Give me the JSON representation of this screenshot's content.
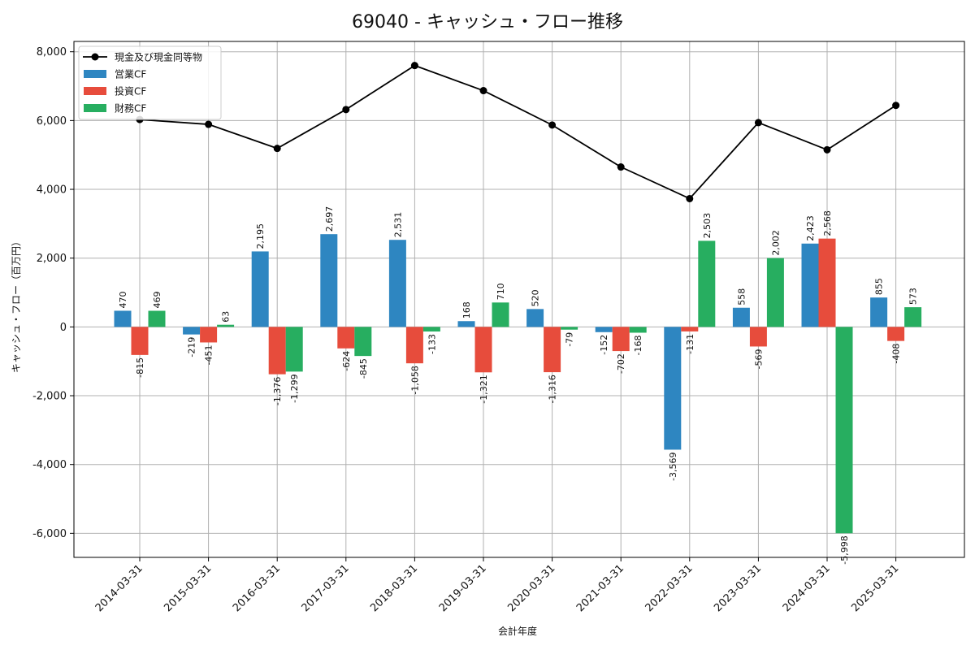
{
  "chart_data": {
    "type": "bar",
    "title": "69040 - キャッシュ・フロー推移",
    "xlabel": "会計年度",
    "ylabel": "キャッシュ・フロー（百万円）",
    "categories": [
      "2014-03-31",
      "2015-03-31",
      "2016-03-31",
      "2017-03-31",
      "2018-03-31",
      "2019-03-31",
      "2020-03-31",
      "2021-03-31",
      "2022-03-31",
      "2023-03-31",
      "2024-03-31",
      "2025-03-31"
    ],
    "ylim": [
      -6700,
      8300
    ],
    "yticks": [
      -6000,
      -4000,
      -2000,
      0,
      2000,
      4000,
      6000,
      8000
    ],
    "ytick_labels": [
      "-6,000",
      "-4,000",
      "-2,000",
      "0",
      "2,000",
      "4,000",
      "6,000",
      "8,000"
    ],
    "grid": true,
    "legend_position": "top-left",
    "series": [
      {
        "name": "営業CF",
        "kind": "bar",
        "color": "#2e86c1",
        "values": [
          470,
          -219,
          2195,
          2697,
          2531,
          168,
          520,
          -152,
          -3569,
          558,
          2423,
          855
        ],
        "labels": [
          "470",
          "-219",
          "2,195",
          "2,697",
          "2,531",
          "168",
          "520",
          "-152",
          "-3,569",
          "558",
          "2,423",
          "855"
        ]
      },
      {
        "name": "投資CF",
        "kind": "bar",
        "color": "#e74c3c",
        "values": [
          -815,
          -451,
          -1376,
          -624,
          -1058,
          -1321,
          -1316,
          -702,
          -131,
          -569,
          2568,
          -408
        ],
        "labels": [
          "-815",
          "-451",
          "-1,376",
          "-624",
          "-1,058",
          "-1,321",
          "-1,316",
          "-702",
          "-131",
          "-569",
          "2,568",
          "-408"
        ]
      },
      {
        "name": "財務CF",
        "kind": "bar",
        "color": "#27ae60",
        "values": [
          469,
          63,
          -1299,
          -845,
          -133,
          710,
          -79,
          -168,
          2503,
          2002,
          -5998,
          573
        ],
        "labels": [
          "469",
          "63",
          "-1,299",
          "-845",
          "-133",
          "710",
          "-79",
          "-168",
          "2,503",
          "2,002",
          "-5,998",
          "573"
        ]
      },
      {
        "name": "現金及び現金同等物",
        "kind": "line",
        "color": "#000000",
        "values": [
          6030,
          5890,
          5190,
          6320,
          7600,
          6870,
          5870,
          4650,
          3730,
          5940,
          5150,
          6440
        ]
      }
    ]
  }
}
